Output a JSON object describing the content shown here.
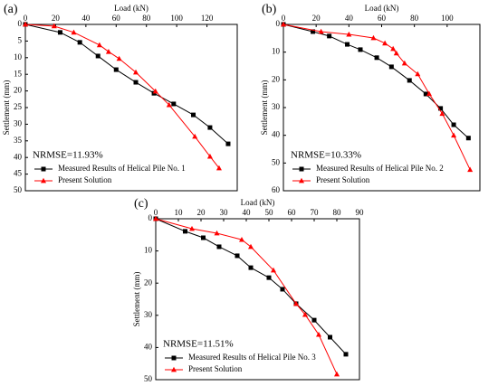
{
  "chart_data": [
    {
      "type": "line",
      "panel_label": "(a)",
      "xlabel": "Load (kN)",
      "ylabel": "Settlement (mm)",
      "annotation": "NRMSE=11.93%",
      "x_axis_position": "top",
      "y_inverted": true,
      "legend": "lower left",
      "xlim": [
        0,
        140
      ],
      "xticks": [
        0,
        20,
        40,
        60,
        80,
        100,
        120
      ],
      "ylim": [
        0,
        50
      ],
      "yticks": [
        0,
        5,
        10,
        15,
        20,
        25,
        30,
        35,
        40,
        45,
        50
      ],
      "series": [
        {
          "name": "Measured Results of Helical Pile No. 1",
          "color": "#000000",
          "marker": "square",
          "x": [
            0,
            23,
            36,
            48,
            60,
            73,
            85,
            98,
            111,
            122,
            134
          ],
          "values": [
            0,
            2.4,
            5.4,
            9.5,
            13.6,
            17.4,
            20.7,
            23.9,
            27.2,
            31,
            35.9
          ]
        },
        {
          "name": "Present Solution",
          "color": "#ff0000",
          "marker": "triangle",
          "x": [
            0,
            19,
            32,
            49,
            55,
            62,
            73,
            86,
            95,
            112,
            122,
            128
          ],
          "values": [
            0,
            0.5,
            2.4,
            6.2,
            8.2,
            10.3,
            14.4,
            20.1,
            24.2,
            33.7,
            39.7,
            43.2
          ]
        }
      ]
    },
    {
      "type": "line",
      "panel_label": "(b)",
      "xlabel": "Load (kN)",
      "ylabel": "Settlement (mm)",
      "annotation": "NRMSE=10.33%",
      "x_axis_position": "top",
      "y_inverted": true,
      "legend": "lower left",
      "xlim": [
        0,
        120
      ],
      "xticks": [
        0,
        20,
        40,
        60,
        80,
        100
      ],
      "ylim": [
        0,
        60
      ],
      "yticks": [
        0,
        10,
        20,
        30,
        40,
        50,
        60
      ],
      "series": [
        {
          "name": "Measured Results of Helical Pile No. 2",
          "color": "#000000",
          "marker": "square",
          "x": [
            0,
            18,
            28,
            39,
            47,
            57,
            66,
            77,
            87,
            96,
            104,
            113
          ],
          "values": [
            0,
            2.6,
            4.2,
            7.2,
            9.1,
            12,
            15.3,
            20.2,
            25.1,
            30.3,
            36.2,
            41
          ]
        },
        {
          "name": "Present Solution",
          "color": "#ff0000",
          "marker": "triangle",
          "x": [
            0,
            23,
            40,
            55,
            62,
            67,
            69,
            74,
            82,
            89,
            97,
            104,
            114
          ],
          "values": [
            0,
            2.6,
            3.6,
            4.9,
            6.8,
            8.8,
            10.4,
            14,
            17.9,
            25,
            32.2,
            40,
            52.4
          ]
        }
      ]
    },
    {
      "type": "line",
      "panel_label": "(c)",
      "xlabel": "Load (kN)",
      "ylabel": "Settlement (mm)",
      "annotation": "NRMSE=11.51%",
      "x_axis_position": "top",
      "y_inverted": true,
      "legend": "lower left",
      "xlim": [
        0,
        90
      ],
      "xticks": [
        0,
        10,
        20,
        30,
        40,
        50,
        60,
        70,
        80,
        90
      ],
      "ylim": [
        0,
        50
      ],
      "yticks": [
        0,
        10,
        20,
        30,
        40,
        50
      ],
      "series": [
        {
          "name": "Measured Results of Helical Pile No. 3",
          "color": "#000000",
          "marker": "square",
          "x": [
            0,
            13,
            21,
            28,
            36,
            42,
            50,
            56,
            62,
            70,
            77,
            84
          ],
          "values": [
            0,
            3.9,
            5.9,
            8.7,
            11.5,
            15.2,
            18.3,
            21.9,
            26.4,
            31.5,
            36.8,
            42.1
          ]
        },
        {
          "name": "Present Solution",
          "color": "#ff0000",
          "marker": "triangle",
          "x": [
            0,
            16,
            27,
            38,
            42,
            52,
            62,
            66,
            72,
            80
          ],
          "values": [
            0,
            3.1,
            4.5,
            6.5,
            8.7,
            16,
            26.4,
            29.8,
            36,
            48.3
          ]
        }
      ]
    }
  ]
}
